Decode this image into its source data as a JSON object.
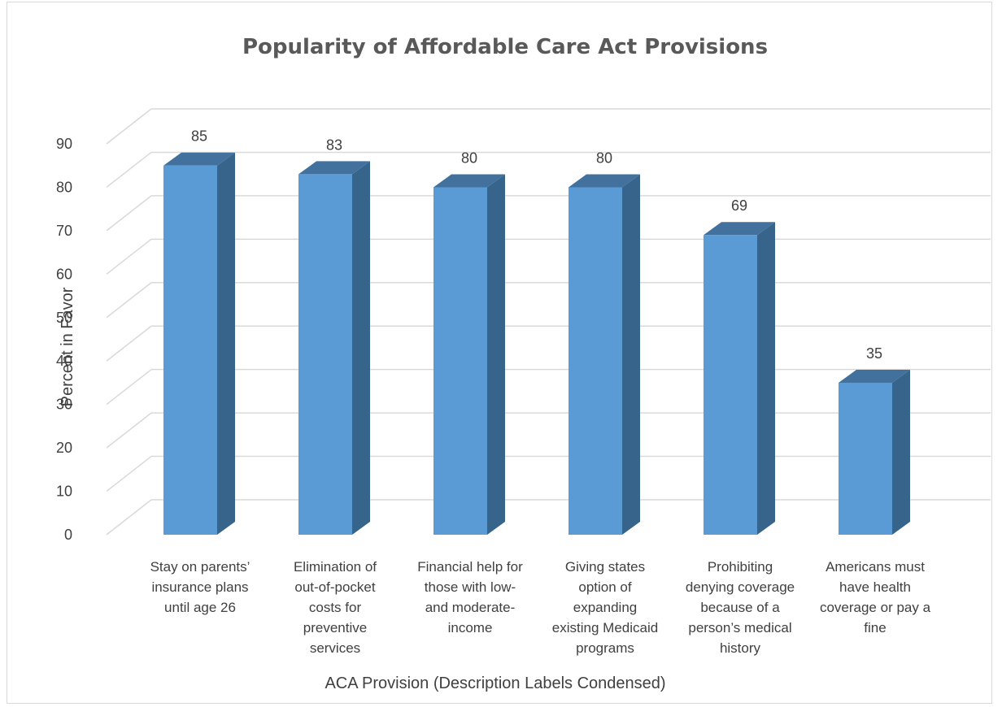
{
  "chart_data": {
    "type": "bar",
    "title": "Popularity of Affordable Care Act Provisions",
    "xlabel": "ACA Provision (Description Labels Condensed)",
    "ylabel": "Percent in Favor",
    "ylim": [
      0,
      90
    ],
    "yticks": [
      0,
      10,
      20,
      30,
      40,
      50,
      60,
      70,
      80,
      90
    ],
    "grid": true,
    "style": "3d-column",
    "colors": {
      "front": "#5b9bd5",
      "top": "#41719c",
      "side": "#37648b",
      "grid": "#d9d9d9",
      "text": "#404040",
      "title": "#595959"
    },
    "categories": [
      [
        "Stay on parents’",
        "insurance plans",
        "until age 26"
      ],
      [
        "Elimination of",
        "out-of-pocket",
        "costs for",
        "preventive",
        "services"
      ],
      [
        "Financial help for",
        "those with low-",
        "and moderate-",
        "income"
      ],
      [
        "Giving states",
        "option of",
        "expanding",
        "existing Medicaid",
        "programs"
      ],
      [
        "Prohibiting",
        "denying coverage",
        "because of a",
        "person’s medical",
        "history"
      ],
      [
        "Americans must",
        "have health",
        "coverage or pay a",
        "fine"
      ]
    ],
    "values": [
      85,
      83,
      80,
      80,
      69,
      35
    ]
  }
}
